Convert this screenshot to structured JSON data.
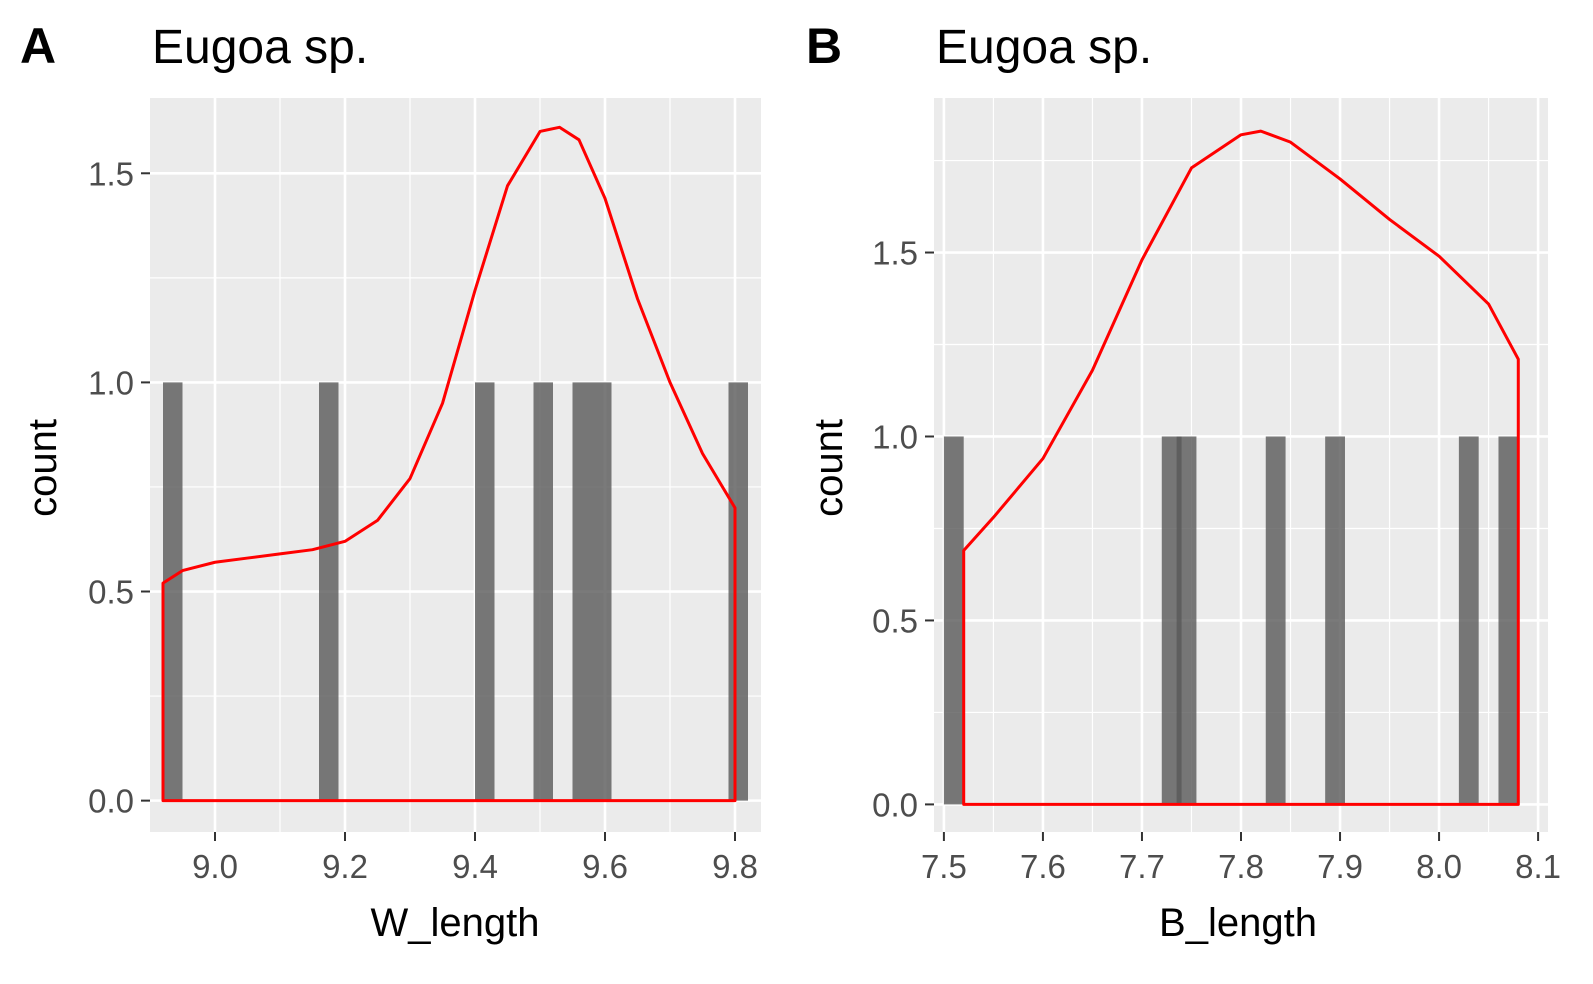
{
  "colors": {
    "panel_background": "#ebebeb",
    "grid_major": "#ffffff",
    "bar_fill": "#595959",
    "density_line": "#ff0000",
    "tick_text": "#4d4d4d"
  },
  "chart_data": [
    {
      "type": "bar",
      "panel_letter": "A",
      "title": "Eugoa sp.",
      "xlabel": "W_length",
      "ylabel": "count",
      "xlim": [
        8.9,
        9.84
      ],
      "ylim": [
        -0.075,
        1.68
      ],
      "x_ticks": [
        9.0,
        9.2,
        9.4,
        9.6,
        9.8
      ],
      "x_tick_labels": [
        "9.0",
        "9.2",
        "9.4",
        "9.6",
        "9.8"
      ],
      "y_ticks": [
        0.0,
        0.5,
        1.0,
        1.5
      ],
      "y_tick_labels": [
        "0.0",
        "0.5",
        "1.0",
        "1.5"
      ],
      "grid": true,
      "bars": [
        {
          "x": 8.935,
          "count": 1
        },
        {
          "x": 9.175,
          "count": 1
        },
        {
          "x": 9.415,
          "count": 1
        },
        {
          "x": 9.505,
          "count": 1
        },
        {
          "x": 9.565,
          "count": 1
        },
        {
          "x": 9.595,
          "count": 1
        },
        {
          "x": 9.805,
          "count": 1
        }
      ],
      "bin_width": 0.03,
      "density": {
        "x": [
          8.92,
          8.95,
          9.0,
          9.05,
          9.1,
          9.15,
          9.2,
          9.25,
          9.3,
          9.35,
          9.4,
          9.45,
          9.5,
          9.53,
          9.56,
          9.6,
          9.65,
          9.7,
          9.75,
          9.8
        ],
        "y": [
          0.52,
          0.55,
          0.57,
          0.58,
          0.59,
          0.6,
          0.62,
          0.67,
          0.77,
          0.95,
          1.22,
          1.47,
          1.6,
          1.61,
          1.58,
          1.44,
          1.2,
          1.0,
          0.83,
          0.7
        ]
      }
    },
    {
      "type": "bar",
      "panel_letter": "B",
      "title": "Eugoa sp.",
      "xlabel": "B_length",
      "ylabel": "count",
      "xlim": [
        7.49,
        8.11
      ],
      "ylim": [
        -0.075,
        1.92
      ],
      "x_ticks": [
        7.5,
        7.6,
        7.7,
        7.8,
        7.9,
        8.0,
        8.1
      ],
      "x_tick_labels": [
        "7.5",
        "7.6",
        "7.7",
        "7.8",
        "7.9",
        "8.0",
        "8.1"
      ],
      "y_ticks": [
        0.0,
        0.5,
        1.0,
        1.5
      ],
      "y_tick_labels": [
        "0.0",
        "0.5",
        "1.0",
        "1.5"
      ],
      "grid": true,
      "bars": [
        {
          "x": 7.51,
          "count": 1
        },
        {
          "x": 7.73,
          "count": 1
        },
        {
          "x": 7.745,
          "count": 1
        },
        {
          "x": 7.835,
          "count": 1
        },
        {
          "x": 7.895,
          "count": 1
        },
        {
          "x": 8.03,
          "count": 1
        },
        {
          "x": 8.07,
          "count": 1
        }
      ],
      "bin_width": 0.02,
      "density": {
        "x": [
          7.52,
          7.55,
          7.6,
          7.65,
          7.7,
          7.75,
          7.8,
          7.82,
          7.85,
          7.9,
          7.95,
          8.0,
          8.05,
          8.08
        ],
        "y": [
          0.69,
          0.78,
          0.94,
          1.18,
          1.48,
          1.73,
          1.82,
          1.83,
          1.8,
          1.7,
          1.59,
          1.49,
          1.36,
          1.21
        ]
      }
    }
  ]
}
